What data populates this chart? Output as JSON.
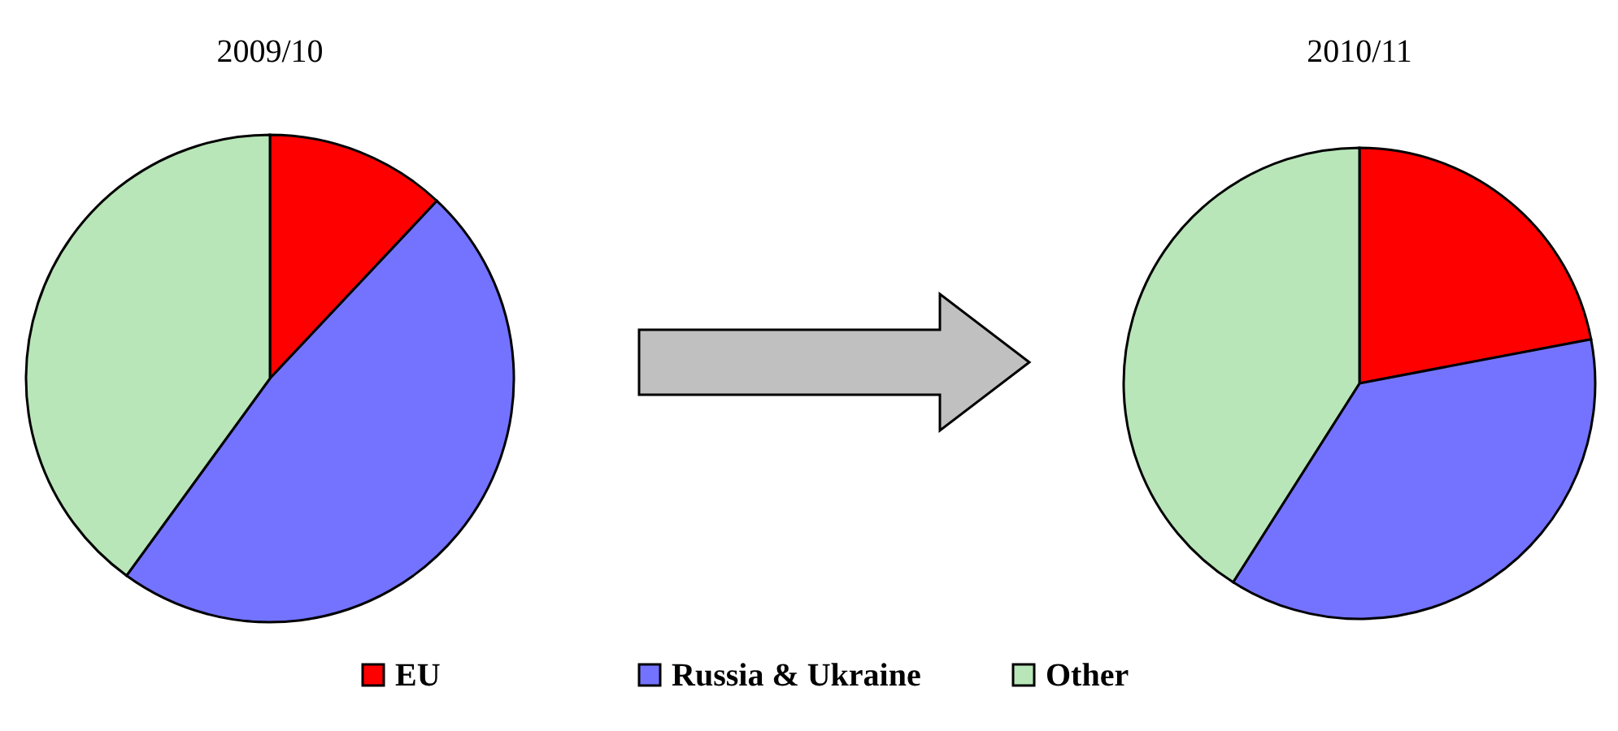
{
  "chart_data": [
    {
      "type": "pie",
      "title": "2009/10",
      "categories": [
        "EU",
        "Russia & Ukraine",
        "Other"
      ],
      "values": [
        12,
        48,
        40
      ],
      "colors": [
        "#ff0000",
        "#7373ff",
        "#b8e6b8"
      ],
      "legend": "bottom"
    },
    {
      "type": "pie",
      "title": "2010/11",
      "categories": [
        null,
        null,
        null
      ],
      "values": [
        22,
        37,
        41
      ],
      "colors": [
        "#ff0000",
        "#7373ff",
        "#b8e6b8"
      ]
    }
  ]
}
